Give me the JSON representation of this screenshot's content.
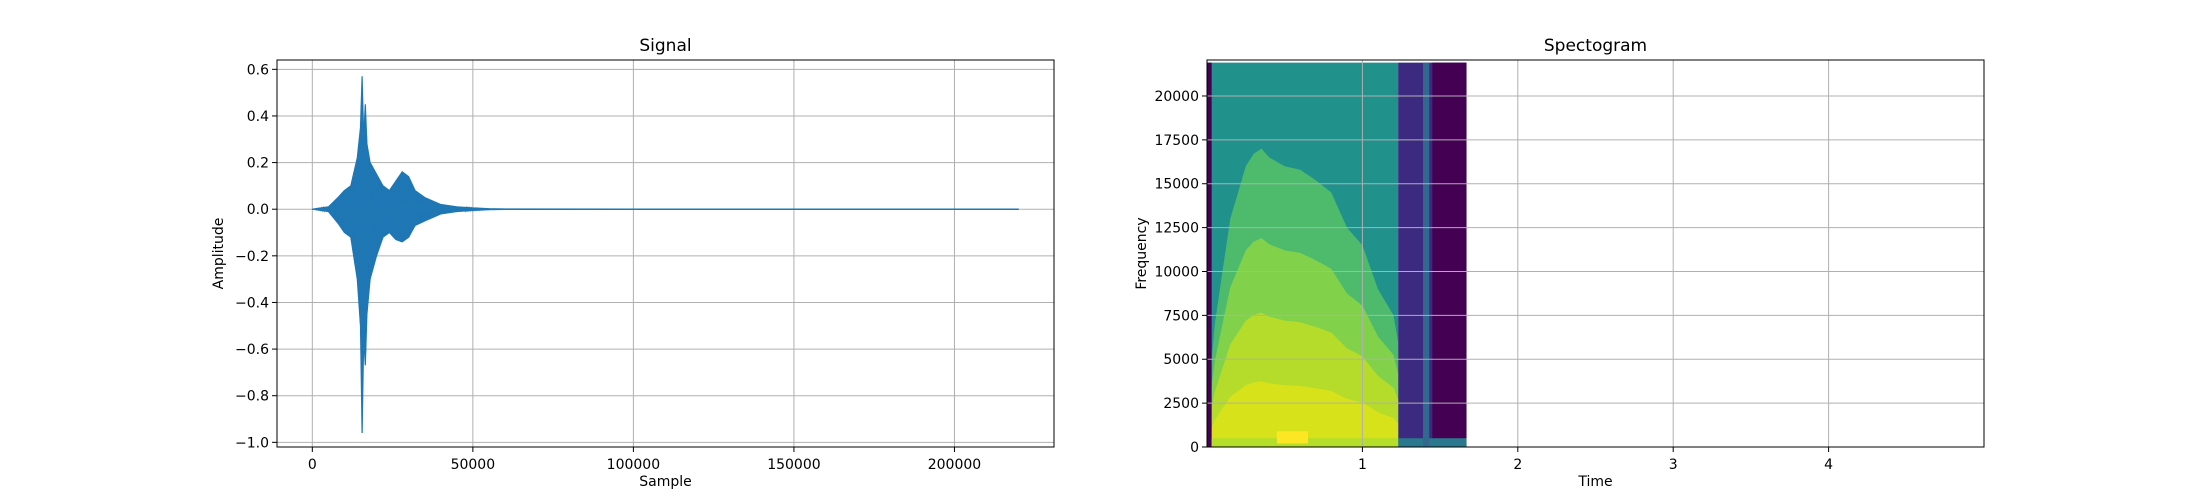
{
  "chart_data": [
    {
      "type": "line",
      "title": "Signal",
      "xlabel": "Sample",
      "ylabel": "Amplitude",
      "xlim": [
        -11000,
        231000
      ],
      "ylim": [
        -1.02,
        0.64
      ],
      "xticks": [
        0,
        50000,
        100000,
        150000,
        200000
      ],
      "xtick_labels": [
        "0",
        "50000",
        "100000",
        "150000",
        "200000"
      ],
      "yticks": [
        0.6,
        0.4,
        0.2,
        0.0,
        -0.2,
        -0.4,
        -0.6,
        -0.8,
        -1.0
      ],
      "ytick_labels": [
        "0.6",
        "0.4",
        "0.2",
        "0.0",
        "−0.2",
        "−0.4",
        "−0.6",
        "−0.8",
        "−1.0"
      ],
      "grid": true,
      "series": [
        {
          "color": "#1f77b4",
          "x": [
            0,
            5000,
            8000,
            10000,
            12000,
            14000,
            15000,
            15500,
            16000,
            16500,
            17000,
            18000,
            20000,
            22000,
            24000,
            26000,
            28000,
            30000,
            32000,
            35000,
            40000,
            45000,
            50000,
            55000,
            60000,
            220000
          ],
          "upper": [
            0.0,
            0.01,
            0.05,
            0.08,
            0.1,
            0.22,
            0.35,
            0.57,
            0.3,
            0.45,
            0.28,
            0.2,
            0.15,
            0.1,
            0.08,
            0.12,
            0.16,
            0.14,
            0.08,
            0.05,
            0.02,
            0.01,
            0.005,
            0.002,
            0.001,
            0.0
          ],
          "lower": [
            0.0,
            -0.01,
            -0.06,
            -0.1,
            -0.12,
            -0.3,
            -0.5,
            -0.96,
            -0.55,
            -0.67,
            -0.45,
            -0.3,
            -0.2,
            -0.12,
            -0.1,
            -0.13,
            -0.14,
            -0.12,
            -0.07,
            -0.05,
            -0.02,
            -0.01,
            -0.005,
            -0.002,
            -0.001,
            0.0
          ]
        }
      ]
    },
    {
      "type": "heatmap",
      "title": "Spectogram",
      "xlabel": "Time",
      "ylabel": "Frequency",
      "xlim": [
        0,
        5.0
      ],
      "ylim": [
        0,
        22050
      ],
      "xticks": [
        1,
        2,
        3,
        4
      ],
      "xtick_labels": [
        "1",
        "2",
        "3",
        "4"
      ],
      "yticks": [
        0,
        2500,
        5000,
        7500,
        10000,
        12500,
        15000,
        17500,
        20000
      ],
      "ytick_labels": [
        "0",
        "2500",
        "5000",
        "7500",
        "10000",
        "12500",
        "15000",
        "17500",
        "20000"
      ],
      "grid": true,
      "data_extent": {
        "t_start": 0,
        "t_end": 1.67,
        "f_max": 21900
      },
      "regions": [
        {
          "t0": 0.0,
          "t1": 1.23,
          "f0": 0,
          "f1": 21900,
          "color": "#21918c"
        },
        {
          "t0": 1.23,
          "t1": 1.67,
          "f0": 0,
          "f1": 21900,
          "color": "#3b2a80"
        },
        {
          "t0": 1.45,
          "t1": 1.67,
          "f0": 0,
          "f1": 21900,
          "color": "#440154"
        },
        {
          "t0": 1.23,
          "t1": 1.67,
          "f0": 0,
          "f1": 500,
          "color": "#2a788e"
        },
        {
          "t0": 1.39,
          "t1": 1.43,
          "f0": 0,
          "f1": 21900,
          "color": "#31688e"
        },
        {
          "t0": 0.0,
          "t1": 0.03,
          "f0": 0,
          "f1": 21900,
          "color": "#440154"
        },
        {
          "t0": 0.03,
          "t1": 1.23,
          "f0": 0,
          "f1": 500,
          "color": "#b5de2b"
        },
        {
          "t0": 0.45,
          "t1": 0.65,
          "f0": 200,
          "f1": 900,
          "color": "#fde725"
        }
      ],
      "energy_band": {
        "t": [
          0.0,
          0.05,
          0.1,
          0.15,
          0.2,
          0.25,
          0.3,
          0.35,
          0.4,
          0.5,
          0.6,
          0.7,
          0.8,
          0.9,
          1.0,
          1.1,
          1.2,
          1.23
        ],
        "f_top": [
          2000,
          7000,
          10000,
          13000,
          14500,
          16000,
          16700,
          17000,
          16500,
          16000,
          15800,
          15200,
          14500,
          12500,
          11500,
          9000,
          7500,
          6000
        ]
      }
    }
  ]
}
